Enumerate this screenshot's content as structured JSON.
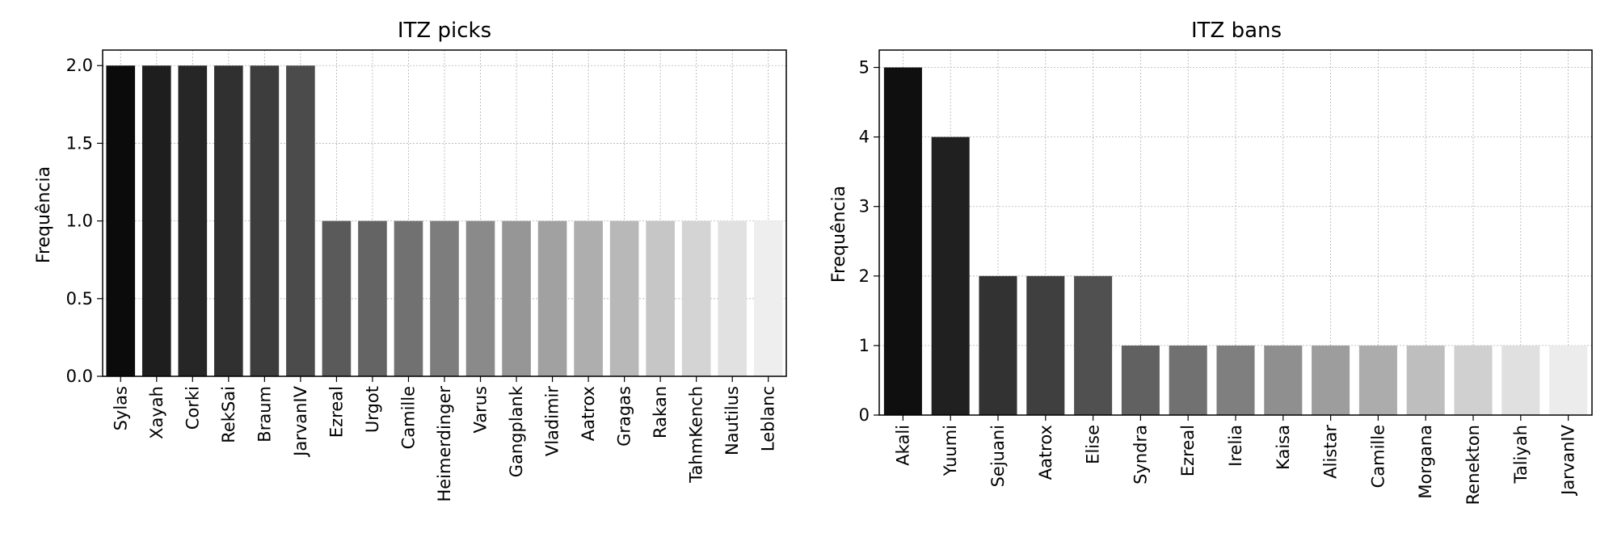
{
  "chart_data": [
    {
      "type": "bar",
      "title": "ITZ picks",
      "xlabel": "",
      "ylabel": "Frequência",
      "ylim": [
        0,
        2.1
      ],
      "yticks": [
        "0.0",
        "0.5",
        "1.0",
        "1.5",
        "2.0"
      ],
      "grid": true,
      "categories": [
        "Sylas",
        "Xayah",
        "Corki",
        "RekSai",
        "Braum",
        "JarvanIV",
        "Ezreal",
        "Urgot",
        "Camille",
        "Heimerdinger",
        "Varus",
        "Gangplank",
        "Vladimir",
        "Aatrox",
        "Gragas",
        "Rakan",
        "TahmKench",
        "Nautilus",
        "Leblanc"
      ],
      "values": [
        2,
        2,
        2,
        2,
        2,
        2,
        1,
        1,
        1,
        1,
        1,
        1,
        1,
        1,
        1,
        1,
        1,
        1,
        1
      ],
      "colors": [
        "#0b0b0b",
        "#1e1e1e",
        "#262626",
        "#303030",
        "#3d3d3d",
        "#4b4b4b",
        "#5a5a5a",
        "#646464",
        "#717171",
        "#7d7d7d",
        "#8a8a8a",
        "#969696",
        "#a1a1a1",
        "#aeaeae",
        "#b8b8b8",
        "#c6c6c6",
        "#d4d4d4",
        "#e1e1e1",
        "#eeeeee"
      ]
    },
    {
      "type": "bar",
      "title": "ITZ bans",
      "xlabel": "",
      "ylabel": "Frequência",
      "ylim": [
        0,
        5.25
      ],
      "yticks": [
        "0",
        "1",
        "2",
        "3",
        "4",
        "5"
      ],
      "grid": true,
      "categories": [
        "Akali",
        "Yuumi",
        "Sejuani",
        "Aatrox",
        "Elise",
        "Syndra",
        "Ezreal",
        "Irelia",
        "Kaisa",
        "Alistar",
        "Camille",
        "Morgana",
        "Renekton",
        "Taliyah",
        "JarvanIV"
      ],
      "values": [
        5,
        4,
        2,
        2,
        2,
        1,
        1,
        1,
        1,
        1,
        1,
        1,
        1,
        1,
        1
      ],
      "colors": [
        "#0f0f0f",
        "#202020",
        "#323232",
        "#3f3f3f",
        "#505050",
        "#616161",
        "#717171",
        "#7f7f7f",
        "#8f8f8f",
        "#9d9d9d",
        "#acacac",
        "#bebebe",
        "#d0d0d0",
        "#e0e0e0",
        "#ececec"
      ]
    }
  ]
}
